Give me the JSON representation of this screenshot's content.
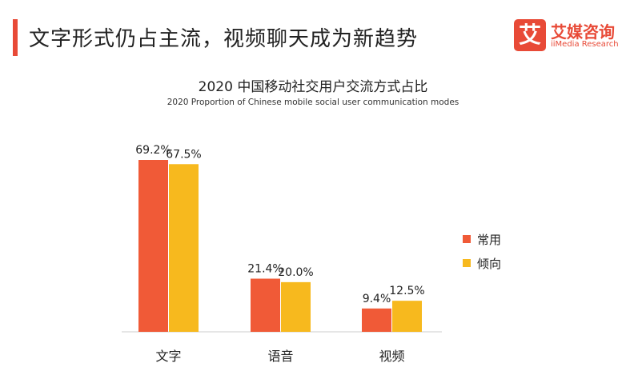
{
  "header": {
    "headline": "文字形式仍占主流，视频聊天成为新趋势",
    "logo_mark": "艾",
    "logo_cn": "艾媒咨询",
    "logo_en": "iiMedia Research",
    "accent_color": "#e84a37"
  },
  "chart_data": {
    "type": "bar",
    "title": "2020 中国移动社交用户交流方式占比",
    "subtitle": "2020 Proportion of Chinese mobile social user communication modes",
    "categories": [
      "文字",
      "语音",
      "视频"
    ],
    "series": [
      {
        "name": "常用",
        "values": [
          69.2,
          21.4,
          9.4
        ],
        "labels": [
          "69.2%",
          "21.4%",
          "9.4%"
        ],
        "color": "#f05a37"
      },
      {
        "name": "倾向",
        "values": [
          67.5,
          20.0,
          12.5
        ],
        "labels": [
          "67.5%",
          "20.0%",
          "12.5%"
        ],
        "color": "#f7b91e"
      }
    ],
    "ylim": [
      0,
      69.2
    ],
    "grid": false,
    "legend_position": "right"
  }
}
